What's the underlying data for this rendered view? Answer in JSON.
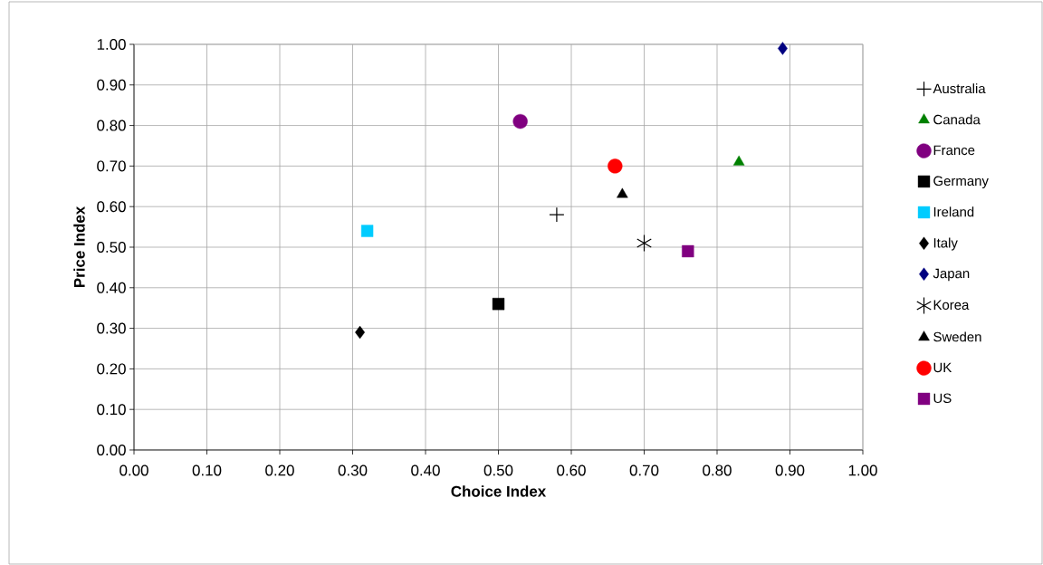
{
  "chart_data": {
    "type": "scatter",
    "xlabel": "Choice Index",
    "ylabel": "Price Index",
    "xlim": [
      0,
      1
    ],
    "ylim": [
      0,
      1
    ],
    "xticks": [
      {
        "value": 0,
        "label": "0.00"
      },
      {
        "value": 0.1,
        "label": "0.10"
      },
      {
        "value": 0.2,
        "label": "0.20"
      },
      {
        "value": 0.3,
        "label": "0.30"
      },
      {
        "value": 0.4,
        "label": "0.40"
      },
      {
        "value": 0.5,
        "label": "0.50"
      },
      {
        "value": 0.6,
        "label": "0.60"
      },
      {
        "value": 0.7,
        "label": "0.70"
      },
      {
        "value": 0.8,
        "label": "0.80"
      },
      {
        "value": 0.9,
        "label": "0.90"
      },
      {
        "value": 1,
        "label": "1.00"
      }
    ],
    "yticks": [
      {
        "value": 0,
        "label": "0.00"
      },
      {
        "value": 0.1,
        "label": "0.10"
      },
      {
        "value": 0.2,
        "label": "0.20"
      },
      {
        "value": 0.3,
        "label": "0.30"
      },
      {
        "value": 0.4,
        "label": "0.40"
      },
      {
        "value": 0.5,
        "label": "0.50"
      },
      {
        "value": 0.6,
        "label": "0.60"
      },
      {
        "value": 0.7,
        "label": "0.70"
      },
      {
        "value": 0.8,
        "label": "0.80"
      },
      {
        "value": 0.9,
        "label": "0.90"
      },
      {
        "value": 1,
        "label": "1.00"
      }
    ],
    "grid": true,
    "legend": "right",
    "series": [
      {
        "name": "Australia",
        "color": "#000000",
        "marker": "cross",
        "x": [
          0.58
        ],
        "values": [
          0.58
        ]
      },
      {
        "name": "Canada",
        "color": "#008000",
        "marker": "triangle",
        "x": [
          0.83
        ],
        "values": [
          0.71
        ]
      },
      {
        "name": "France",
        "color": "#800080",
        "marker": "circle",
        "x": [
          0.53
        ],
        "values": [
          0.81
        ]
      },
      {
        "name": "Germany",
        "color": "#000000",
        "marker": "square",
        "x": [
          0.5
        ],
        "values": [
          0.36
        ]
      },
      {
        "name": "Ireland",
        "color": "#00ccff",
        "marker": "square",
        "x": [
          0.32
        ],
        "values": [
          0.54
        ]
      },
      {
        "name": "Italy",
        "color": "#000000",
        "marker": "diamond",
        "x": [
          0.31
        ],
        "values": [
          0.29
        ]
      },
      {
        "name": "Japan",
        "color": "#000080",
        "marker": "diamond",
        "x": [
          0.89
        ],
        "values": [
          0.99
        ]
      },
      {
        "name": "Korea",
        "color": "#000000",
        "x": [
          0.7
        ],
        "values": [
          0.51
        ]
      },
      {
        "name": "Sweden",
        "color": "#000000",
        "marker": "triangle",
        "x": [
          0.67
        ],
        "values": [
          0.63
        ]
      },
      {
        "name": "UK",
        "color": "#ff0000",
        "marker": "circle",
        "x": [
          0.66
        ],
        "values": [
          0.7
        ]
      },
      {
        "name": "US",
        "color": "#800080",
        "marker": "square",
        "x": [
          0.76
        ],
        "values": [
          0.49
        ]
      }
    ]
  }
}
